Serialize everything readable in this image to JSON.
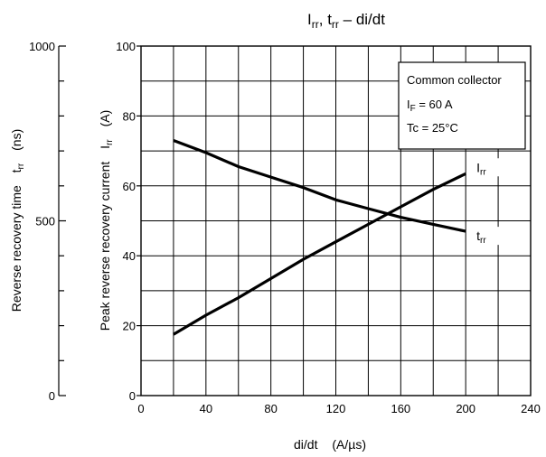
{
  "chart_data": {
    "type": "line",
    "title": {
      "main": "I",
      "main_sub": "rr",
      "sep": ", t",
      "sep_sub": "rr",
      "suffix": " – di/dt"
    },
    "x_axis": {
      "label": "di/dt",
      "unit": "(A/µs)",
      "range": [
        0,
        240
      ],
      "ticks": [
        0,
        40,
        80,
        120,
        160,
        200,
        240
      ],
      "minor_ticks": [
        0,
        20,
        40,
        60,
        80,
        100,
        120,
        140,
        160,
        180,
        200,
        220,
        240
      ]
    },
    "y_axis_left_inner": {
      "label": "Peak reverse recovery current",
      "symbol": "I",
      "symbol_sub": "rr",
      "unit": "(A)",
      "range": [
        0,
        100
      ],
      "ticks": [
        0,
        20,
        40,
        60,
        80,
        100
      ],
      "minor_ticks": [
        0,
        10,
        20,
        30,
        40,
        50,
        60,
        70,
        80,
        90,
        100
      ]
    },
    "y_axis_left_outer": {
      "label": "Reverse recovery time",
      "symbol": "t",
      "symbol_sub": "rr",
      "unit": "(ns)",
      "range": [
        0,
        1000
      ],
      "ticks": [
        0,
        500,
        1000
      ],
      "minor_ticks": [
        0,
        100,
        200,
        300,
        400,
        500,
        600,
        700,
        800,
        900,
        1000
      ]
    },
    "grid": true,
    "annotation": {
      "line1": "Common collector",
      "line2_main": "I",
      "line2_sub": "F",
      "line2_rest": " = 60 A",
      "line3": "Tc = 25°C"
    },
    "series": [
      {
        "name": "I",
        "name_sub": "rr",
        "axis": "left_inner",
        "x": [
          20,
          40,
          60,
          80,
          100,
          120,
          140,
          160,
          180,
          200
        ],
        "y": [
          17.5,
          23,
          28,
          33.5,
          39,
          44,
          49,
          54,
          59,
          63.5
        ]
      },
      {
        "name": "t",
        "name_sub": "rr",
        "axis": "left_outer",
        "x": [
          20,
          40,
          60,
          80,
          100,
          120,
          140,
          160,
          180,
          200
        ],
        "y": [
          730,
          695,
          655,
          625,
          595,
          560,
          535,
          510,
          490,
          470
        ]
      }
    ]
  }
}
